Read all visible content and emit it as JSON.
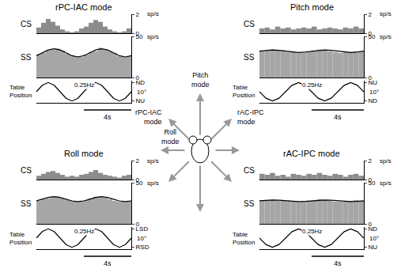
{
  "chart_data": [
    {
      "title": "rPC-IAC mode",
      "plots": [
        {
          "type": "histogram",
          "label": "CS",
          "ylabel": "sp/s",
          "color": "#8c8c8c",
          "tick_labels": "y",
          "bins": [
            0,
            0.4,
            0.8,
            1.2,
            1.6,
            2,
            2.4,
            2.8,
            3.2,
            3.6,
            4,
            4.4,
            4.8,
            5.2,
            5.6,
            6,
            6.4,
            6.8,
            7.2,
            7.6,
            8
          ],
          "values": [
            0.6,
            1.1,
            1.5,
            1.2,
            0.8,
            0.4,
            0.2,
            0.1,
            0.2,
            0.5,
            0.7,
            1.1,
            1.4,
            1.2,
            0.7,
            0.4,
            0.2,
            0.1,
            0.2,
            0.5
          ],
          "xlim": [
            0,
            8
          ],
          "ylim": [
            0,
            2
          ],
          "yticks": [
            0,
            2
          ]
        },
        {
          "type": "histogram",
          "label": "SS",
          "ylabel": "sp/s",
          "color": "#a6a6a6",
          "tick_labels": "y",
          "bins": [
            0,
            0.4,
            0.8,
            1.2,
            1.6,
            2,
            2.4,
            2.8,
            3.2,
            3.6,
            4,
            4.4,
            4.8,
            5.2,
            5.6,
            6,
            6.4,
            6.8,
            7.2,
            7.6,
            8
          ],
          "values": [
            28,
            30,
            33,
            34,
            35,
            33,
            29,
            27,
            26,
            25,
            28,
            31,
            32,
            36,
            34,
            32,
            30,
            26,
            25,
            26
          ],
          "fit": {
            "x": [
              0,
              0.5,
              1,
              1.5,
              2,
              2.5,
              3,
              3.5,
              4,
              4.5,
              5,
              5.5,
              6,
              6.5,
              7,
              7.5,
              8
            ],
            "values": [
              26.5,
              30,
              33.5,
              35,
              33.5,
              30,
              26.5,
              25,
              26.5,
              30,
              33.5,
              35,
              33.5,
              30,
              26.5,
              25,
              26.5
            ],
            "color": "#000000"
          },
          "xlim": [
            0,
            8
          ],
          "ylim": [
            0,
            50
          ],
          "yticks": [
            0,
            50
          ]
        },
        {
          "type": "line",
          "label": "Table Position",
          "annotation": "0.25Hz",
          "scale_label": "10°",
          "color": "#000000",
          "tick_labels": "y",
          "x": [
            0,
            0.5,
            1,
            1.5,
            2,
            2.5,
            3,
            3.5,
            4,
            4.5,
            5,
            5.5,
            6,
            6.5,
            7,
            7.5,
            8
          ],
          "values": [
            0,
            3.5,
            5,
            3.5,
            0,
            -3.5,
            -5,
            -3.5,
            0,
            3.5,
            5,
            3.5,
            0,
            -3.5,
            -5,
            -3.5,
            0
          ],
          "xlim": [
            0,
            8
          ],
          "ylim": [
            -6,
            6
          ],
          "yticks": [
            {
              "value": -5,
              "label": "NU"
            },
            {
              "value": 5,
              "label": "ND"
            }
          ],
          "scale_bar": {
            "start": 4,
            "end": 8,
            "label": "4s"
          }
        }
      ]
    },
    {
      "title": "Pitch mode",
      "plots": [
        {
          "type": "histogram",
          "label": "CS",
          "ylabel": "sp/s",
          "color": "#8c8c8c",
          "tick_labels": "y",
          "bins": [
            0,
            0.4,
            0.8,
            1.2,
            1.6,
            2,
            2.4,
            2.8,
            3.2,
            3.6,
            4,
            4.4,
            4.8,
            5.2,
            5.6,
            6,
            6.4,
            6.8,
            7.2,
            7.6,
            8
          ],
          "values": [
            0.5,
            0.6,
            0.4,
            0.7,
            0.5,
            0.6,
            0.4,
            0.5,
            0.6,
            0.5,
            0.7,
            0.4,
            0.5,
            0.6,
            0.5,
            0.4,
            0.6,
            0.5,
            0.7,
            0.5
          ],
          "xlim": [
            0,
            8
          ],
          "ylim": [
            0,
            2
          ],
          "yticks": [
            0,
            2
          ]
        },
        {
          "type": "histogram",
          "label": "SS",
          "ylabel": "sp/s",
          "color": "#a6a6a6",
          "tick_labels": "y",
          "bins": [
            0,
            0.4,
            0.8,
            1.2,
            1.6,
            2,
            2.4,
            2.8,
            3.2,
            3.6,
            4,
            4.4,
            4.8,
            5.2,
            5.6,
            6,
            6.4,
            6.8,
            7.2,
            7.6,
            8
          ],
          "values": [
            32,
            33,
            34,
            33,
            33,
            31,
            31,
            30,
            31,
            32,
            33,
            34,
            33,
            32,
            31,
            30,
            31,
            31,
            32,
            32
          ],
          "fit": {
            "x": [
              0,
              0.5,
              1,
              1.5,
              2,
              2.5,
              3,
              3.5,
              4,
              4.5,
              5,
              5.5,
              6,
              6.5,
              7,
              7.5,
              8
            ],
            "values": [
              32,
              33,
              33.5,
              33,
              32,
              31,
              30.5,
              31,
              32,
              33,
              33.5,
              33,
              32,
              31,
              30.5,
              31,
              32
            ],
            "color": "#000000"
          },
          "xlim": [
            0,
            8
          ],
          "ylim": [
            0,
            50
          ],
          "yticks": [
            0,
            50
          ]
        },
        {
          "type": "line",
          "label": "Table Position",
          "annotation": "0.25Hz",
          "scale_label": "10°",
          "color": "#000000",
          "tick_labels": "y",
          "x": [
            0,
            0.5,
            1,
            1.5,
            2,
            2.5,
            3,
            3.5,
            4,
            4.5,
            5,
            5.5,
            6,
            6.5,
            7,
            7.5,
            8
          ],
          "values": [
            0,
            -3.5,
            -5,
            -3.5,
            0,
            3.5,
            5,
            3.5,
            0,
            -3.5,
            -5,
            -3.5,
            0,
            3.5,
            5,
            3.5,
            0
          ],
          "xlim": [
            0,
            8
          ],
          "ylim": [
            -6,
            6
          ],
          "yticks": [
            {
              "value": -5,
              "label": "ND"
            },
            {
              "value": 5,
              "label": "NU"
            }
          ],
          "scale_bar": {
            "start": 4,
            "end": 8,
            "label": "4s"
          }
        }
      ]
    },
    {
      "title": "Roll mode",
      "plots": [
        {
          "type": "histogram",
          "label": "CS",
          "ylabel": "sp/s",
          "color": "#8c8c8c",
          "tick_labels": "y",
          "bins": [
            0,
            0.4,
            0.8,
            1.2,
            1.6,
            2,
            2.4,
            2.8,
            3.2,
            3.6,
            4,
            4.4,
            4.8,
            5.2,
            5.6,
            6,
            6.4,
            6.8,
            7.2,
            7.6,
            8
          ],
          "values": [
            0.4,
            0.6,
            0.8,
            0.9,
            0.7,
            0.5,
            0.3,
            0.4,
            0.3,
            0.5,
            0.6,
            0.8,
            1.0,
            0.7,
            0.5,
            0.4,
            0.3,
            0.2,
            0.4,
            0.5
          ],
          "xlim": [
            0,
            8
          ],
          "ylim": [
            0,
            2
          ],
          "yticks": [
            0,
            2
          ]
        },
        {
          "type": "histogram",
          "label": "SS",
          "ylabel": "sp/s",
          "color": "#a6a6a6",
          "tick_labels": "y",
          "bins": [
            0,
            0.4,
            0.8,
            1.2,
            1.6,
            2,
            2.4,
            2.8,
            3.2,
            3.6,
            4,
            4.4,
            4.8,
            5.2,
            5.6,
            6,
            6.4,
            6.8,
            7.2,
            7.6,
            8
          ],
          "values": [
            28,
            30,
            31,
            33,
            33,
            31,
            29,
            28,
            27,
            28,
            29,
            31,
            33,
            33,
            32,
            30,
            28,
            27,
            27,
            28
          ],
          "fit": {
            "x": [
              0,
              0.5,
              1,
              1.5,
              2,
              2.5,
              3,
              3.5,
              4,
              4.5,
              5,
              5.5,
              6,
              6.5,
              7,
              7.5,
              8
            ],
            "values": [
              27.9,
              30,
              32.1,
              33,
              32.1,
              30,
              27.9,
              27,
              27.9,
              30,
              32.1,
              33,
              32.1,
              30,
              27.9,
              27,
              27.9
            ],
            "color": "#000000"
          },
          "xlim": [
            0,
            8
          ],
          "ylim": [
            0,
            50
          ],
          "yticks": [
            0,
            50
          ]
        },
        {
          "type": "line",
          "label": "Table Position",
          "annotation": "0.25Hz",
          "scale_label": "10°",
          "color": "#000000",
          "tick_labels": "y",
          "x": [
            0,
            0.5,
            1,
            1.5,
            2,
            2.5,
            3,
            3.5,
            4,
            4.5,
            5,
            5.5,
            6,
            6.5,
            7,
            7.5,
            8
          ],
          "values": [
            0,
            3.5,
            5,
            3.5,
            0,
            -3.5,
            -5,
            -3.5,
            0,
            3.5,
            5,
            3.5,
            0,
            -3.5,
            -5,
            -3.5,
            0
          ],
          "xlim": [
            0,
            8
          ],
          "ylim": [
            -6,
            6
          ],
          "yticks": [
            {
              "value": -5,
              "label": "RSD"
            },
            {
              "value": 5,
              "label": "LSD"
            }
          ],
          "scale_bar": {
            "start": 4,
            "end": 8,
            "label": "4s"
          }
        }
      ]
    },
    {
      "title": "rAC-IPC mode",
      "plots": [
        {
          "type": "histogram",
          "label": "CS",
          "ylabel": "sp/s",
          "color": "#8c8c8c",
          "tick_labels": "y",
          "bins": [
            0,
            0.4,
            0.8,
            1.2,
            1.6,
            2,
            2.4,
            2.8,
            3.2,
            3.6,
            4,
            4.4,
            4.8,
            5.2,
            5.6,
            6,
            6.4,
            6.8,
            7.2,
            7.6,
            8
          ],
          "values": [
            0.6,
            0.5,
            0.7,
            0.4,
            0.5,
            0.3,
            0.6,
            0.5,
            0.4,
            0.6,
            0.5,
            0.7,
            0.5,
            0.4,
            0.6,
            0.5,
            0.3,
            0.5,
            0.6,
            0.4
          ],
          "xlim": [
            0,
            8
          ],
          "ylim": [
            0,
            2
          ],
          "yticks": [
            0,
            2
          ]
        },
        {
          "type": "histogram",
          "label": "SS",
          "ylabel": "sp/s",
          "color": "#a6a6a6",
          "tick_labels": "y",
          "bins": [
            0,
            0.4,
            0.8,
            1.2,
            1.6,
            2,
            2.4,
            2.8,
            3.2,
            3.6,
            4,
            4.4,
            4.8,
            5.2,
            5.6,
            6,
            6.4,
            6.8,
            7.2,
            7.6,
            8
          ],
          "values": [
            28,
            29,
            29,
            28,
            29,
            28,
            27,
            27,
            28,
            28,
            29,
            30,
            29,
            28,
            27,
            27,
            27,
            28,
            29,
            28
          ],
          "fit": {
            "x": [
              0,
              0.5,
              1,
              1.5,
              2,
              2.5,
              3,
              3.5,
              4,
              4.5,
              5,
              5.5,
              6,
              6.5,
              7,
              7.5,
              8
            ],
            "values": [
              28,
              28.7,
              29,
              28.7,
              28,
              27.3,
              27,
              27.3,
              28,
              28.7,
              29,
              28.7,
              28,
              27.3,
              27,
              27.3,
              28
            ],
            "color": "#000000"
          },
          "xlim": [
            0,
            8
          ],
          "ylim": [
            0,
            50
          ],
          "yticks": [
            0,
            50
          ]
        },
        {
          "type": "line",
          "label": "Table Position",
          "annotation": "0.25Hz",
          "scale_label": "10°",
          "color": "#000000",
          "tick_labels": "y",
          "x": [
            0,
            0.5,
            1,
            1.5,
            2,
            2.5,
            3,
            3.5,
            4,
            4.5,
            5,
            5.5,
            6,
            6.5,
            7,
            7.5,
            8
          ],
          "values": [
            0,
            -3.5,
            -5,
            -3.5,
            0,
            3.5,
            5,
            3.5,
            0,
            -3.5,
            -5,
            -3.5,
            0,
            3.5,
            5,
            3.5,
            0
          ],
          "xlim": [
            0,
            8
          ],
          "ylim": [
            -6,
            6
          ],
          "yticks": [
            {
              "value": -5,
              "label": "NU"
            },
            {
              "value": 5,
              "label": "ND"
            }
          ],
          "scale_bar": {
            "start": 4,
            "end": 8,
            "label": "4s"
          }
        }
      ]
    }
  ],
  "diagram": {
    "labels": [
      "Pitch mode",
      "rPC-IAC mode",
      "rAC-IPC mode",
      "Roll mode"
    ]
  }
}
